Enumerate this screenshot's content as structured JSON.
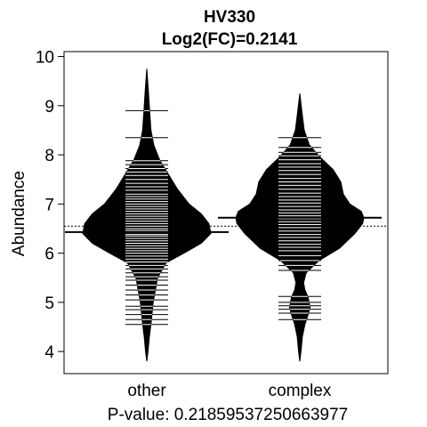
{
  "chart_data": {
    "type": "beanplot",
    "title_line1": "HV330",
    "title_line2": "Log2(FC)=0.2141",
    "ylabel": "Abundance",
    "xlabel": "P-value: 0.21859537250663977",
    "ylim": [
      3.55,
      10.1
    ],
    "yticks": [
      4,
      5,
      6,
      7,
      8,
      9,
      10
    ],
    "categories": [
      "other",
      "complex"
    ],
    "overall_mean": 6.55,
    "colors": {
      "bean": "#000000",
      "line": "#ffffff",
      "background": "#ffffff"
    },
    "beans": [
      {
        "name": "other",
        "mean": 6.43,
        "profile": [
          [
            3.8,
            0.0
          ],
          [
            4.0,
            0.02
          ],
          [
            4.3,
            0.04
          ],
          [
            4.6,
            0.07
          ],
          [
            5.0,
            0.1
          ],
          [
            5.5,
            0.17
          ],
          [
            5.8,
            0.3
          ],
          [
            6.0,
            0.58
          ],
          [
            6.2,
            0.85
          ],
          [
            6.4,
            1.0
          ],
          [
            6.6,
            0.97
          ],
          [
            6.8,
            0.85
          ],
          [
            7.0,
            0.66
          ],
          [
            7.3,
            0.48
          ],
          [
            7.6,
            0.34
          ],
          [
            7.9,
            0.2
          ],
          [
            8.2,
            0.11
          ],
          [
            8.5,
            0.065
          ],
          [
            8.9,
            0.045
          ],
          [
            9.3,
            0.025
          ],
          [
            9.75,
            0.0
          ]
        ],
        "observations": [
          4.55,
          4.65,
          4.75,
          4.85,
          4.92,
          5.05,
          5.15,
          5.25,
          5.35,
          5.45,
          5.52,
          5.6,
          5.68,
          5.75,
          5.82,
          5.88,
          5.94,
          6.0,
          6.05,
          6.1,
          6.15,
          6.2,
          6.25,
          6.3,
          6.35,
          6.38,
          6.42,
          6.46,
          6.5,
          6.55,
          6.6,
          6.65,
          6.7,
          6.75,
          6.8,
          6.85,
          6.9,
          6.95,
          7.0,
          7.05,
          7.1,
          7.15,
          7.2,
          7.28,
          7.35,
          7.42,
          7.5,
          7.58,
          7.65,
          7.72,
          7.8,
          7.88,
          8.35,
          8.9
        ]
      },
      {
        "name": "complex",
        "mean": 6.72,
        "profile": [
          [
            3.8,
            0.0
          ],
          [
            4.0,
            0.02
          ],
          [
            4.3,
            0.04
          ],
          [
            4.55,
            0.08
          ],
          [
            4.75,
            0.13
          ],
          [
            4.9,
            0.16
          ],
          [
            5.1,
            0.13
          ],
          [
            5.25,
            0.08
          ],
          [
            5.4,
            0.06
          ],
          [
            5.6,
            0.1
          ],
          [
            5.85,
            0.3
          ],
          [
            6.1,
            0.62
          ],
          [
            6.4,
            0.86
          ],
          [
            6.6,
            0.98
          ],
          [
            6.72,
            1.0
          ],
          [
            6.85,
            0.96
          ],
          [
            7.0,
            0.78
          ],
          [
            7.2,
            0.68
          ],
          [
            7.45,
            0.64
          ],
          [
            7.7,
            0.52
          ],
          [
            7.95,
            0.32
          ],
          [
            8.2,
            0.15
          ],
          [
            8.5,
            0.07
          ],
          [
            8.8,
            0.04
          ],
          [
            9.25,
            0.0
          ]
        ],
        "observations": [
          4.65,
          4.78,
          4.86,
          4.93,
          5.0,
          5.12,
          5.65,
          5.75,
          5.85,
          5.95,
          6.05,
          6.12,
          6.18,
          6.25,
          6.32,
          6.38,
          6.45,
          6.52,
          6.58,
          6.64,
          6.7,
          6.76,
          6.82,
          6.88,
          6.95,
          7.02,
          7.08,
          7.15,
          7.22,
          7.3,
          7.38,
          7.45,
          7.52,
          7.6,
          7.68,
          7.75,
          7.82,
          7.9,
          7.98,
          8.05,
          8.15,
          8.35
        ]
      }
    ]
  }
}
